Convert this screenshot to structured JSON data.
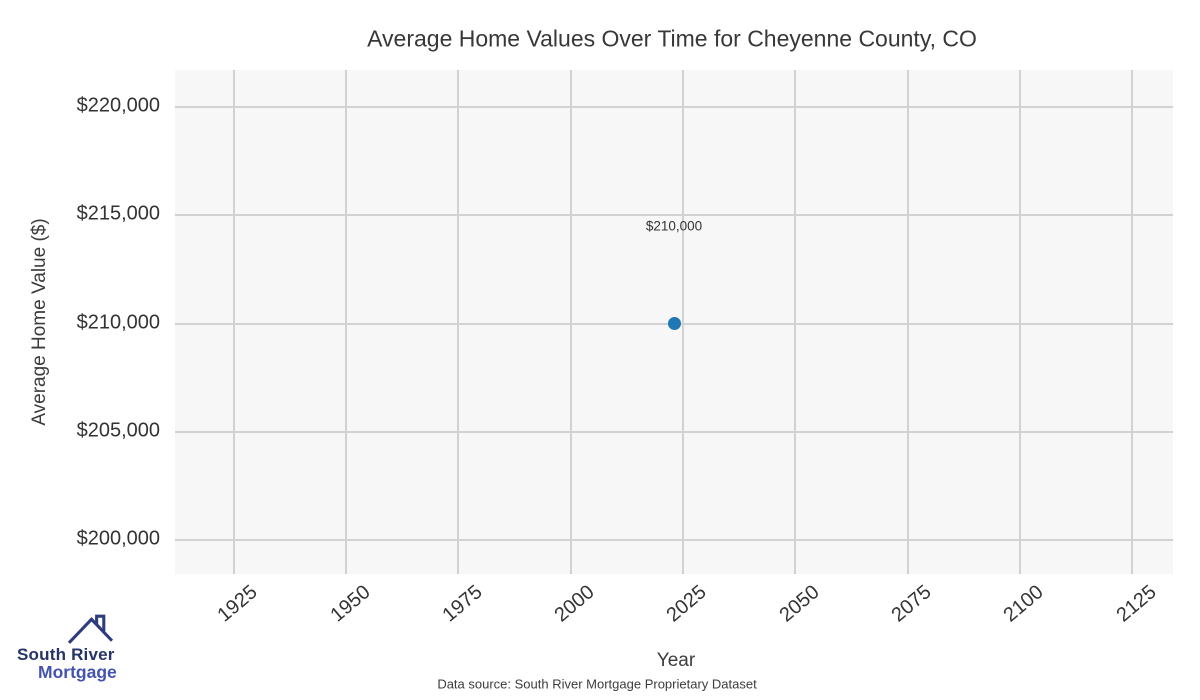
{
  "chart_data": {
    "type": "scatter",
    "title": "Average Home Values Over Time for Cheyenne County, CO",
    "xlabel": "Year",
    "ylabel": "Average Home Value ($)",
    "source_note": "Data source: South River Mortgage Proprietary Dataset",
    "series": [
      {
        "name": "Average Home Value",
        "points": [
          {
            "x": 2023,
            "y": 210000,
            "label": "$210,000"
          }
        ]
      }
    ],
    "x_range": [
      1911.9,
      2134.1
    ],
    "y_range": [
      198430,
      221710
    ],
    "x_tick_values": [
      1925,
      1950,
      1975,
      2000,
      2025,
      2050,
      2075,
      2100,
      2125
    ],
    "x_tick_labels": [
      "1925",
      "1950",
      "1975",
      "2000",
      "2025",
      "2050",
      "2075",
      "2100",
      "2125"
    ],
    "y_tick_values": [
      220000,
      215000,
      210000,
      205000,
      200000
    ],
    "y_tick_labels": [
      "$220,000",
      "$215,000",
      "$210,000",
      "$205,000",
      "$200,000"
    ],
    "grid": true,
    "legend": false,
    "marker_color": "#1f77b4",
    "plot_bg": "#f7f7f7",
    "grid_color": "#d2d2d2"
  },
  "logo": {
    "line1": "South River",
    "line2": "Mortgage",
    "text_color_1": "#263467",
    "text_color_2": "#4353ae",
    "roof_color": "#2e3c7e"
  }
}
